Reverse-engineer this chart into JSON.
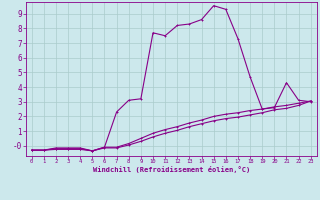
{
  "xlabel": "Windchill (Refroidissement éolien,°C)",
  "bg_color": "#cce8ec",
  "grid_color": "#aacccc",
  "line_color": "#880088",
  "spine_color": "#880088",
  "xlim": [
    -0.5,
    23.5
  ],
  "ylim": [
    -0.7,
    9.8
  ],
  "x_ticks": [
    0,
    1,
    2,
    3,
    4,
    5,
    6,
    7,
    8,
    9,
    10,
    11,
    12,
    13,
    14,
    15,
    16,
    17,
    18,
    19,
    20,
    21,
    22,
    23
  ],
  "y_ticks": [
    0,
    1,
    2,
    3,
    4,
    5,
    6,
    7,
    8,
    9
  ],
  "y_tick_labels": [
    "-0",
    "1",
    "2",
    "3",
    "4",
    "5",
    "6",
    "7",
    "8",
    "9"
  ],
  "curve1_x": [
    0,
    1,
    2,
    3,
    4,
    5,
    6,
    7,
    8,
    9,
    10,
    11,
    12,
    13,
    14,
    15,
    16,
    17,
    18,
    19,
    20,
    21,
    22,
    23
  ],
  "curve1_y": [
    -0.3,
    -0.3,
    -0.15,
    -0.15,
    -0.15,
    -0.35,
    -0.1,
    2.3,
    3.1,
    3.2,
    7.7,
    7.5,
    8.2,
    8.3,
    8.6,
    9.55,
    9.3,
    7.3,
    4.7,
    2.5,
    2.6,
    4.3,
    3.1,
    3.0
  ],
  "curve2_x": [
    0,
    1,
    2,
    3,
    4,
    5,
    6,
    7,
    8,
    9,
    10,
    11,
    12,
    13,
    14,
    15,
    16,
    17,
    18,
    19,
    20,
    21,
    22,
    23
  ],
  "curve2_y": [
    -0.3,
    -0.3,
    -0.2,
    -0.2,
    -0.2,
    -0.35,
    -0.1,
    -0.1,
    0.15,
    0.5,
    0.85,
    1.1,
    1.3,
    1.55,
    1.75,
    2.0,
    2.15,
    2.25,
    2.4,
    2.5,
    2.65,
    2.75,
    2.9,
    3.05
  ],
  "curve3_x": [
    0,
    1,
    2,
    3,
    4,
    5,
    6,
    7,
    8,
    9,
    10,
    11,
    12,
    13,
    14,
    15,
    16,
    17,
    18,
    19,
    20,
    21,
    22,
    23
  ],
  "curve3_y": [
    -0.3,
    -0.3,
    -0.25,
    -0.25,
    -0.25,
    -0.35,
    -0.15,
    -0.15,
    0.05,
    0.3,
    0.6,
    0.85,
    1.05,
    1.3,
    1.5,
    1.7,
    1.85,
    1.95,
    2.1,
    2.25,
    2.45,
    2.55,
    2.75,
    3.05
  ]
}
